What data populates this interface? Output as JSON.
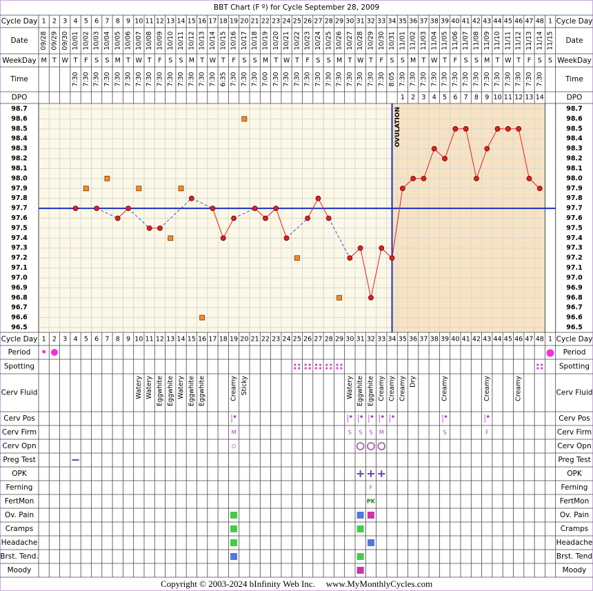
{
  "title": "BBT Chart (F º) for Cycle September 28, 2009",
  "top_labels": [
    "Cycle Day",
    "Date",
    "WeekDay",
    "Time",
    "DPO"
  ],
  "left_labels": [
    "Cycle Day",
    "Period",
    "Spotting",
    "Cerv Fluid",
    "Cerv Pos",
    "Cerv Firm",
    "Cerv Opn",
    "Preg Test",
    "OPK",
    "Ferning",
    "FertMon",
    "Ov. Pain",
    "Cramps",
    "Headache",
    "Brst. Tend.",
    "Moody"
  ],
  "right_labels": [
    "Cycle Day",
    "Period",
    "Spotting",
    "Cerv Fluid",
    "Cerv Pos",
    "Cerv Firm",
    "Cerv Opn",
    "Preg Test",
    "OPK",
    "Ferning",
    "FertMon",
    "Ov. Pain",
    "Cramps",
    "Headache",
    "Brst. Tend",
    "Moody"
  ],
  "cycle_days": [
    1,
    2,
    3,
    4,
    5,
    6,
    7,
    8,
    9,
    10,
    11,
    12,
    13,
    14,
    15,
    16,
    17,
    18,
    19,
    20,
    21,
    22,
    23,
    24,
    25,
    26,
    27,
    28,
    29,
    30,
    31,
    32,
    33,
    34,
    35,
    36,
    37,
    38,
    39,
    40,
    41,
    42,
    43,
    44,
    45,
    46,
    47,
    48,
    1
  ],
  "dates": [
    "09/28",
    "09/29",
    "09/30",
    "10/01",
    "10/02",
    "10/03",
    "10/04",
    "10/05",
    "10/06",
    "10/07",
    "10/08",
    "10/09",
    "10/10",
    "10/11",
    "10/12",
    "10/13",
    "10/14",
    "10/15",
    "10/16",
    "10/17",
    "10/18",
    "10/19",
    "10/20",
    "10/21",
    "10/22",
    "10/23",
    "10/24",
    "10/25",
    "10/26",
    "10/27",
    "10/28",
    "10/29",
    "10/30",
    "10/31",
    "11/01",
    "11/02",
    "11/03",
    "11/04",
    "11/05",
    "11/06",
    "11/07",
    "11/08",
    "11/09",
    "11/10",
    "11/11",
    "11/12",
    "11/13",
    "11/14",
    "11/15"
  ],
  "weekdays": [
    "M",
    "T",
    "W",
    "T",
    "F",
    "S",
    "S",
    "M",
    "T",
    "W",
    "T",
    "F",
    "S",
    "S",
    "M",
    "T",
    "W",
    "T",
    "F",
    "S",
    "S",
    "M",
    "T",
    "W",
    "T",
    "F",
    "S",
    "S",
    "M",
    "T",
    "W",
    "T",
    "F",
    "S",
    "S",
    "M",
    "T",
    "W",
    "T",
    "F",
    "S",
    "S",
    "M",
    "T",
    "W",
    "T",
    "F",
    "S",
    "S"
  ],
  "times": [
    null,
    null,
    null,
    "7:30",
    "7:30",
    "7:30",
    "7:30",
    "7:30",
    "7:30",
    "7:30",
    "7:30",
    "7:30",
    "7:30",
    "7:30",
    "7:30",
    "7:30",
    "7:30",
    "6:35",
    "7:30",
    "7:30",
    "7:30",
    "7:00",
    "7:30",
    "7:30",
    "7:30",
    "7:30",
    "7:30",
    "7:30",
    "7:30",
    "7:30",
    "7:30",
    "7:30",
    "7:30",
    "8:05",
    "7:30",
    "7:30",
    "7:30",
    "7:30",
    "7:30",
    "7:30",
    "7:30",
    "7:30",
    "7:30",
    "7:30",
    "7:30",
    "7:30",
    "7:30",
    "7:30",
    null
  ],
  "dpo": [
    null,
    null,
    null,
    null,
    null,
    null,
    null,
    null,
    null,
    null,
    null,
    null,
    null,
    null,
    null,
    null,
    null,
    null,
    null,
    null,
    null,
    null,
    null,
    null,
    null,
    null,
    null,
    null,
    null,
    null,
    null,
    null,
    null,
    null,
    1,
    2,
    3,
    4,
    5,
    6,
    7,
    8,
    9,
    10,
    11,
    12,
    13,
    14,
    null
  ],
  "cerv_fluid": [
    null,
    null,
    null,
    null,
    null,
    null,
    null,
    null,
    null,
    "Watery",
    "Watery",
    "Eggwhite",
    "Eggwhite",
    "Watery",
    "Eggwhite",
    "Eggwhite",
    null,
    null,
    "Creamy",
    "Sticky",
    null,
    null,
    null,
    null,
    null,
    null,
    null,
    null,
    null,
    "Watery",
    "Eggwhite",
    "Eggwhite",
    "Creamy",
    "Creamy",
    "Creamy",
    "Dry",
    null,
    null,
    "Creamy",
    null,
    null,
    null,
    "Creamy",
    null,
    null,
    "Creamy",
    null,
    null,
    null
  ],
  "cerv_firm": [
    null,
    null,
    null,
    null,
    null,
    null,
    null,
    null,
    null,
    null,
    null,
    null,
    null,
    null,
    null,
    null,
    null,
    null,
    "M",
    null,
    null,
    null,
    null,
    null,
    null,
    null,
    null,
    null,
    null,
    "S",
    "S",
    "S",
    "M",
    null,
    null,
    null,
    null,
    null,
    "S",
    null,
    null,
    null,
    "F",
    null,
    null,
    null,
    null,
    null,
    null
  ],
  "ferning": [
    null,
    null,
    null,
    null,
    null,
    null,
    null,
    null,
    null,
    null,
    null,
    null,
    null,
    null,
    null,
    null,
    null,
    null,
    null,
    null,
    null,
    null,
    null,
    null,
    null,
    null,
    null,
    null,
    null,
    null,
    null,
    "F",
    null,
    null,
    null,
    null,
    null,
    null,
    null,
    null,
    null,
    null,
    null,
    null,
    null,
    null,
    null,
    null,
    null
  ],
  "fertmon": [
    null,
    null,
    null,
    null,
    null,
    null,
    null,
    null,
    null,
    null,
    null,
    null,
    null,
    null,
    null,
    null,
    null,
    null,
    null,
    null,
    null,
    null,
    null,
    null,
    null,
    null,
    null,
    null,
    null,
    null,
    null,
    "PK",
    null,
    null,
    null,
    null,
    null,
    null,
    null,
    null,
    null,
    null,
    null,
    null,
    null,
    null,
    null,
    null,
    null
  ],
  "copyright": "Copyright © 2003-2024 bInfinity Web Inc.",
  "website": "www.MyMonthlyCycles.com",
  "chart_data": {
    "type": "bbt",
    "ylim": [
      96.5,
      98.7
    ],
    "yticks": [
      98.7,
      98.6,
      98.5,
      98.4,
      98.3,
      98.2,
      98.1,
      {
        "value": 98,
        "label": "98.0"
      },
      97.9,
      97.8,
      97.7,
      97.6,
      97.5,
      97.4,
      97.3,
      97.2,
      97.1,
      {
        "value": 97,
        "label": "97.0"
      },
      96.9,
      96.8,
      96.7,
      96.6,
      96.5
    ],
    "grid": true,
    "coverline": 97.7,
    "coverline_color": "#1a2fbf",
    "ovulation_day": 34,
    "ovulation_label": "OVULATION",
    "series": [
      {
        "color": "#e02020",
        "marker": "circle",
        "values": [
          null,
          null,
          null,
          97.7,
          null,
          97.7,
          null,
          97.6,
          97.7,
          null,
          97.5,
          97.5,
          null,
          null,
          97.8,
          null,
          97.7,
          97.4,
          97.6,
          null,
          97.7,
          97.6,
          97.7,
          97.4,
          null,
          97.6,
          97.8,
          97.6,
          null,
          97.2,
          97.3,
          96.8,
          97.3,
          97.2,
          97.9,
          98.0,
          98.0,
          98.3,
          98.2,
          98.5,
          98.5,
          98.0,
          98.3,
          98.5,
          98.5,
          98.5,
          98.0,
          97.9,
          null
        ]
      },
      {
        "color": "#f08a30",
        "marker": "square",
        "values": [
          null,
          null,
          null,
          null,
          97.9,
          null,
          98.0,
          null,
          null,
          97.9,
          null,
          null,
          97.4,
          97.9,
          null,
          96.6,
          null,
          null,
          null,
          98.6,
          null,
          null,
          null,
          null,
          97.2,
          null,
          null,
          null,
          96.8,
          null,
          null,
          null,
          null,
          null,
          null,
          null,
          null,
          null,
          null,
          null,
          null,
          null,
          null,
          null,
          null,
          null,
          null,
          null,
          null
        ]
      }
    ]
  }
}
